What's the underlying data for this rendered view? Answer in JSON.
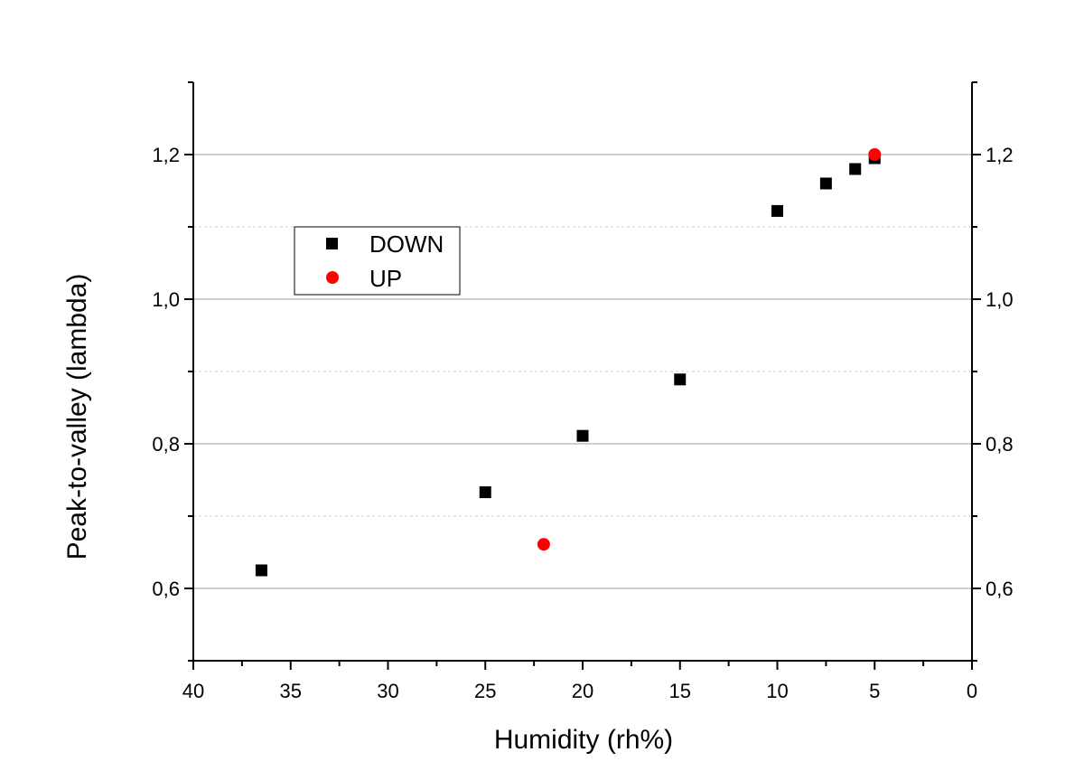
{
  "chart_data": {
    "type": "scatter",
    "xlabel": "Humidity (rh%)",
    "ylabel": "Peak-to-valley (lambda)",
    "xlim": [
      40,
      0
    ],
    "ylim": [
      0.5,
      1.3
    ],
    "x_reversed": true,
    "x_ticks": [
      40,
      35,
      30,
      25,
      20,
      15,
      10,
      5,
      0
    ],
    "x_tick_labels": [
      "40",
      "35",
      "30",
      "25",
      "20",
      "15",
      "10",
      "5",
      "0"
    ],
    "y_ticks": [
      0.6,
      0.8,
      1.0,
      1.2
    ],
    "y_tick_labels": [
      "0,6",
      "0,8",
      "1,0",
      "1,2"
    ],
    "y_major_grid": [
      0.6,
      0.8,
      1.0,
      1.2
    ],
    "y_minor_grid": [
      0.7,
      0.9,
      1.1
    ],
    "grid": true,
    "right_axis_mirrored": true,
    "legend_position": "upper-left",
    "series": [
      {
        "name": "DOWN",
        "marker": "square",
        "color": "#000000",
        "points": [
          {
            "x": 36.5,
            "y": 0.625
          },
          {
            "x": 25,
            "y": 0.733
          },
          {
            "x": 20,
            "y": 0.811
          },
          {
            "x": 15,
            "y": 0.889
          },
          {
            "x": 10,
            "y": 1.122
          },
          {
            "x": 7.5,
            "y": 1.16
          },
          {
            "x": 6,
            "y": 1.18
          },
          {
            "x": 5,
            "y": 1.195
          }
        ]
      },
      {
        "name": "UP",
        "marker": "circle",
        "color": "#ff0000",
        "points": [
          {
            "x": 22,
            "y": 0.661
          },
          {
            "x": 5,
            "y": 1.2
          }
        ]
      }
    ]
  }
}
